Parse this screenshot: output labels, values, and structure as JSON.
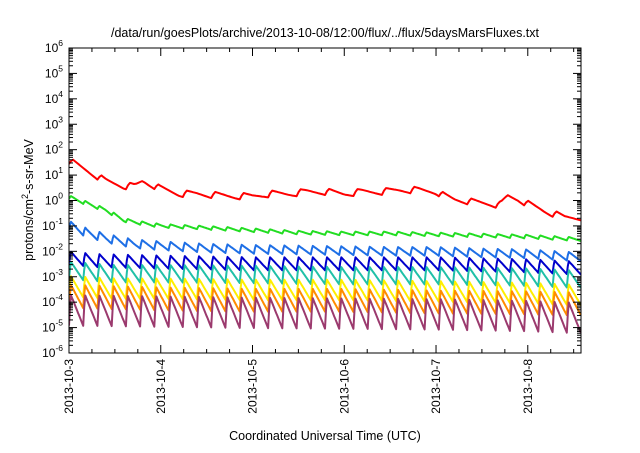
{
  "chart_data": {
    "type": "line",
    "title": "/data/run/goesPlots/archive/2013-10-08/12:00/flux/../flux/5daysMarsFluxes.txt",
    "xlabel": "Coordinated Universal Time (UTC)",
    "ylabel": {
      "prefix": "protons/cm",
      "sup": "2",
      "suffix": "-s-sr-MeV"
    },
    "xscale": "time",
    "yscale": "log",
    "xlim": [
      0,
      5.58
    ],
    "ylim_exp": [
      -6,
      6
    ],
    "x_ticks": [
      {
        "value": 0,
        "label": "2013-10-3"
      },
      {
        "value": 1,
        "label": "2013-10-4"
      },
      {
        "value": 2,
        "label": "2013-10-5"
      },
      {
        "value": 3,
        "label": "2013-10-6"
      },
      {
        "value": 4,
        "label": "2013-10-7"
      },
      {
        "value": 5,
        "label": "2013-10-8"
      }
    ],
    "y_ticks": [
      {
        "exp": -6,
        "base": "10",
        "sup": "-6"
      },
      {
        "exp": -5,
        "base": "10",
        "sup": "-5"
      },
      {
        "exp": -4,
        "base": "10",
        "sup": "-4"
      },
      {
        "exp": -3,
        "base": "10",
        "sup": "-3"
      },
      {
        "exp": -2,
        "base": "10",
        "sup": "-2"
      },
      {
        "exp": -1,
        "base": "10",
        "sup": "-1"
      },
      {
        "exp": 0,
        "base": "10",
        "sup": "0"
      },
      {
        "exp": 1,
        "base": "10",
        "sup": "1"
      },
      {
        "exp": 2,
        "base": "10",
        "sup": "2"
      },
      {
        "exp": 3,
        "base": "10",
        "sup": "3"
      },
      {
        "exp": 4,
        "base": "10",
        "sup": "4"
      },
      {
        "exp": 5,
        "base": "10",
        "sup": "5"
      },
      {
        "exp": 6,
        "base": "10",
        "sup": "6"
      }
    ],
    "grid": false,
    "legend": "none",
    "series": [
      {
        "color": "#ff0000",
        "sawtooth": {
          "period": 0.31,
          "low_ratio": 0.55
        },
        "points": [
          [
            0.0,
            50
          ],
          [
            0.2,
            20
          ],
          [
            0.4,
            8
          ],
          [
            0.6,
            5
          ],
          [
            0.72,
            5
          ],
          [
            0.8,
            8
          ],
          [
            1.0,
            4
          ],
          [
            1.2,
            2.5
          ],
          [
            1.4,
            2.5
          ],
          [
            1.6,
            2.2
          ],
          [
            1.8,
            2
          ],
          [
            2.0,
            2
          ],
          [
            2.2,
            2.5
          ],
          [
            2.4,
            2.5
          ],
          [
            2.6,
            3
          ],
          [
            2.8,
            3
          ],
          [
            3.0,
            2.5
          ],
          [
            3.2,
            3
          ],
          [
            3.4,
            3
          ],
          [
            3.6,
            3.5
          ],
          [
            3.8,
            3.5
          ],
          [
            4.0,
            3
          ],
          [
            4.1,
            2
          ],
          [
            4.2,
            1.5
          ],
          [
            4.4,
            1.2
          ],
          [
            4.6,
            1
          ],
          [
            4.7,
            0.9
          ],
          [
            4.78,
            2
          ],
          [
            4.9,
            1.5
          ],
          [
            5.0,
            1
          ],
          [
            5.2,
            0.5
          ],
          [
            5.4,
            0.3
          ],
          [
            5.58,
            0.3
          ]
        ]
      },
      {
        "color": "#22dd22",
        "sawtooth": {
          "period": 0.155,
          "low_ratio": 0.72
        },
        "points": [
          [
            0.0,
            1.6
          ],
          [
            0.2,
            0.9
          ],
          [
            0.4,
            0.5
          ],
          [
            0.6,
            0.2
          ],
          [
            0.8,
            0.15
          ],
          [
            1.0,
            0.12
          ],
          [
            1.5,
            0.1
          ],
          [
            2.0,
            0.08
          ],
          [
            2.5,
            0.065
          ],
          [
            3.0,
            0.06
          ],
          [
            3.5,
            0.06
          ],
          [
            4.0,
            0.055
          ],
          [
            4.5,
            0.05
          ],
          [
            5.0,
            0.045
          ],
          [
            5.58,
            0.035
          ]
        ]
      },
      {
        "color": "#1e6fe6",
        "sawtooth": {
          "period": 0.155,
          "low_ratio": 0.45
        },
        "points": [
          [
            0.0,
            0.16
          ],
          [
            0.2,
            0.08
          ],
          [
            0.4,
            0.05
          ],
          [
            0.7,
            0.03
          ],
          [
            1.0,
            0.025
          ],
          [
            1.5,
            0.02
          ],
          [
            2.0,
            0.018
          ],
          [
            2.5,
            0.017
          ],
          [
            3.0,
            0.016
          ],
          [
            3.5,
            0.015
          ],
          [
            4.0,
            0.015
          ],
          [
            4.5,
            0.013
          ],
          [
            5.0,
            0.012
          ],
          [
            5.58,
            0.009
          ]
        ]
      },
      {
        "color": "#0000cc",
        "sawtooth": {
          "period": 0.155,
          "low_ratio": 0.3
        },
        "points": [
          [
            0.0,
            0.01
          ],
          [
            0.3,
            0.008
          ],
          [
            1.0,
            0.007
          ],
          [
            2.0,
            0.006
          ],
          [
            3.0,
            0.006
          ],
          [
            4.0,
            0.006
          ],
          [
            5.0,
            0.005
          ],
          [
            5.58,
            0.004
          ]
        ]
      },
      {
        "color": "#20c0a8",
        "sawtooth": {
          "period": 0.155,
          "low_ratio": 0.2
        },
        "points": [
          [
            0.0,
            0.004
          ],
          [
            0.5,
            0.003
          ],
          [
            1.0,
            0.003
          ],
          [
            2.0,
            0.0028
          ],
          [
            3.0,
            0.0025
          ],
          [
            4.0,
            0.0025
          ],
          [
            5.0,
            0.0022
          ],
          [
            5.58,
            0.0018
          ]
        ]
      },
      {
        "color": "#ffee00",
        "sawtooth": {
          "period": 0.155,
          "low_ratio": 0.15
        },
        "points": [
          [
            0.0,
            0.0011
          ],
          [
            0.5,
            0.0009
          ],
          [
            1.0,
            0.0009
          ],
          [
            2.0,
            0.0008
          ],
          [
            3.0,
            0.0008
          ],
          [
            4.0,
            0.0007
          ],
          [
            5.0,
            0.0006
          ],
          [
            5.58,
            0.0005
          ]
        ]
      },
      {
        "color": "#ff8c00",
        "sawtooth": {
          "period": 0.155,
          "low_ratio": 0.12
        },
        "points": [
          [
            0.0,
            0.0005
          ],
          [
            1.0,
            0.0004
          ],
          [
            2.0,
            0.00035
          ],
          [
            3.0,
            0.00035
          ],
          [
            4.0,
            0.0003
          ],
          [
            5.0,
            0.00028
          ],
          [
            5.58,
            0.00025
          ]
        ]
      },
      {
        "color": "#9b3a6e",
        "sawtooth": {
          "period": 0.155,
          "low_ratio": 0.06
        },
        "points": [
          [
            0.0,
            0.0002
          ],
          [
            1.0,
            0.00018
          ],
          [
            2.0,
            0.00016
          ],
          [
            3.0,
            0.00015
          ],
          [
            4.0,
            0.00014
          ],
          [
            5.0,
            0.00012
          ],
          [
            5.58,
            0.0001
          ]
        ]
      }
    ]
  }
}
